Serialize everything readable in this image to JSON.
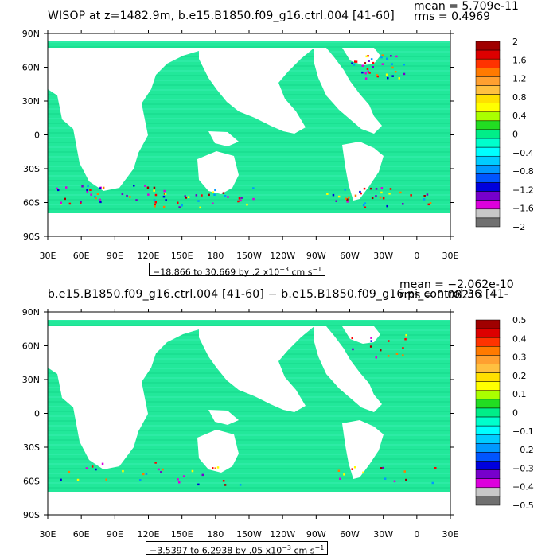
{
  "panels": [
    {
      "title": "WISOP at z=1482.9m, b.e15.B1850.f09_g16.ctrl.004 [41-60]",
      "mean": "mean = 5.709e-11",
      "rms": "rms = 0.4969",
      "range_label": "−18.866 to 30.669 by .2 x10",
      "range_exp": "−3",
      "range_units": " cm s",
      "range_units_exp": "−1"
    },
    {
      "title": "b.e15.B1850.f09_g16.ctrl.004 [41-60] − b.e15.B1850.f09_g16.pi_control.36 [41-",
      "mean": "mean = −2.062e-10",
      "rms": "rms = 0.08213",
      "range_label": "−3.5397 to 6.2938 by .05 x10",
      "range_exp": "−3",
      "range_units": " cm s",
      "range_units_exp": "−1"
    }
  ],
  "chart_data": [
    {
      "type": "heatmap",
      "title": "WISOP at z=1482.9m, b.e15.B1850.f09_g16.ctrl.004 [41-60]",
      "x_ticks": [
        "30E",
        "60E",
        "90E",
        "120E",
        "150E",
        "180",
        "150W",
        "120W",
        "90W",
        "60W",
        "30W",
        "0",
        "30E"
      ],
      "y_ticks": [
        "90N",
        "60N",
        "30N",
        "0",
        "30S",
        "60S",
        "90S"
      ],
      "xlim": [
        30,
        390
      ],
      "ylim": [
        -90,
        90
      ],
      "colorbar_labels": [
        "2",
        "1.6",
        "1.2",
        "0.8",
        "0.4",
        "0",
        "−0.4",
        "−0.8",
        "−1.2",
        "−1.6",
        "−2"
      ],
      "colorbar_range": [
        -2,
        2
      ],
      "data_range": [
        -18.866,
        30.669
      ],
      "contour_interval": 0.2,
      "units": "x10^-3 cm s^-1",
      "mean": 5.709e-11,
      "rms": 0.4969
    },
    {
      "type": "heatmap",
      "title": "b.e15.B1850.f09_g16.ctrl.004 [41-60] − b.e15.B1850.f09_g16.pi_control.36 [41-",
      "x_ticks": [
        "30E",
        "60E",
        "90E",
        "120E",
        "150E",
        "180",
        "150W",
        "120W",
        "90W",
        "60W",
        "30W",
        "0",
        "30E"
      ],
      "y_ticks": [
        "90N",
        "60N",
        "30N",
        "0",
        "30S",
        "60S",
        "90S"
      ],
      "xlim": [
        30,
        390
      ],
      "ylim": [
        -90,
        90
      ],
      "colorbar_labels": [
        "0.5",
        "0.4",
        "0.3",
        "0.2",
        "0.1",
        "0",
        "−0.1",
        "−0.2",
        "−0.3",
        "−0.4",
        "−0.5"
      ],
      "colorbar_range": [
        -0.5,
        0.5
      ],
      "data_range": [
        -3.5397,
        6.2938
      ],
      "contour_interval": 0.05,
      "units": "x10^-3 cm s^-1",
      "mean": -2.062e-10,
      "rms": 0.08213
    }
  ],
  "colorbar_colors": [
    "#a00000",
    "#dd0000",
    "#ff3300",
    "#ff7a00",
    "#ffa030",
    "#ffc040",
    "#ffe000",
    "#ffff00",
    "#aaff00",
    "#22dd22",
    "#00ee88",
    "#00ffcc",
    "#00ffff",
    "#00ccff",
    "#0099ff",
    "#0055ff",
    "#0000dd",
    "#7700cc",
    "#dd00dd",
    "#c8c8c8",
    "#707070"
  ],
  "ocean_color": "#22e89a"
}
